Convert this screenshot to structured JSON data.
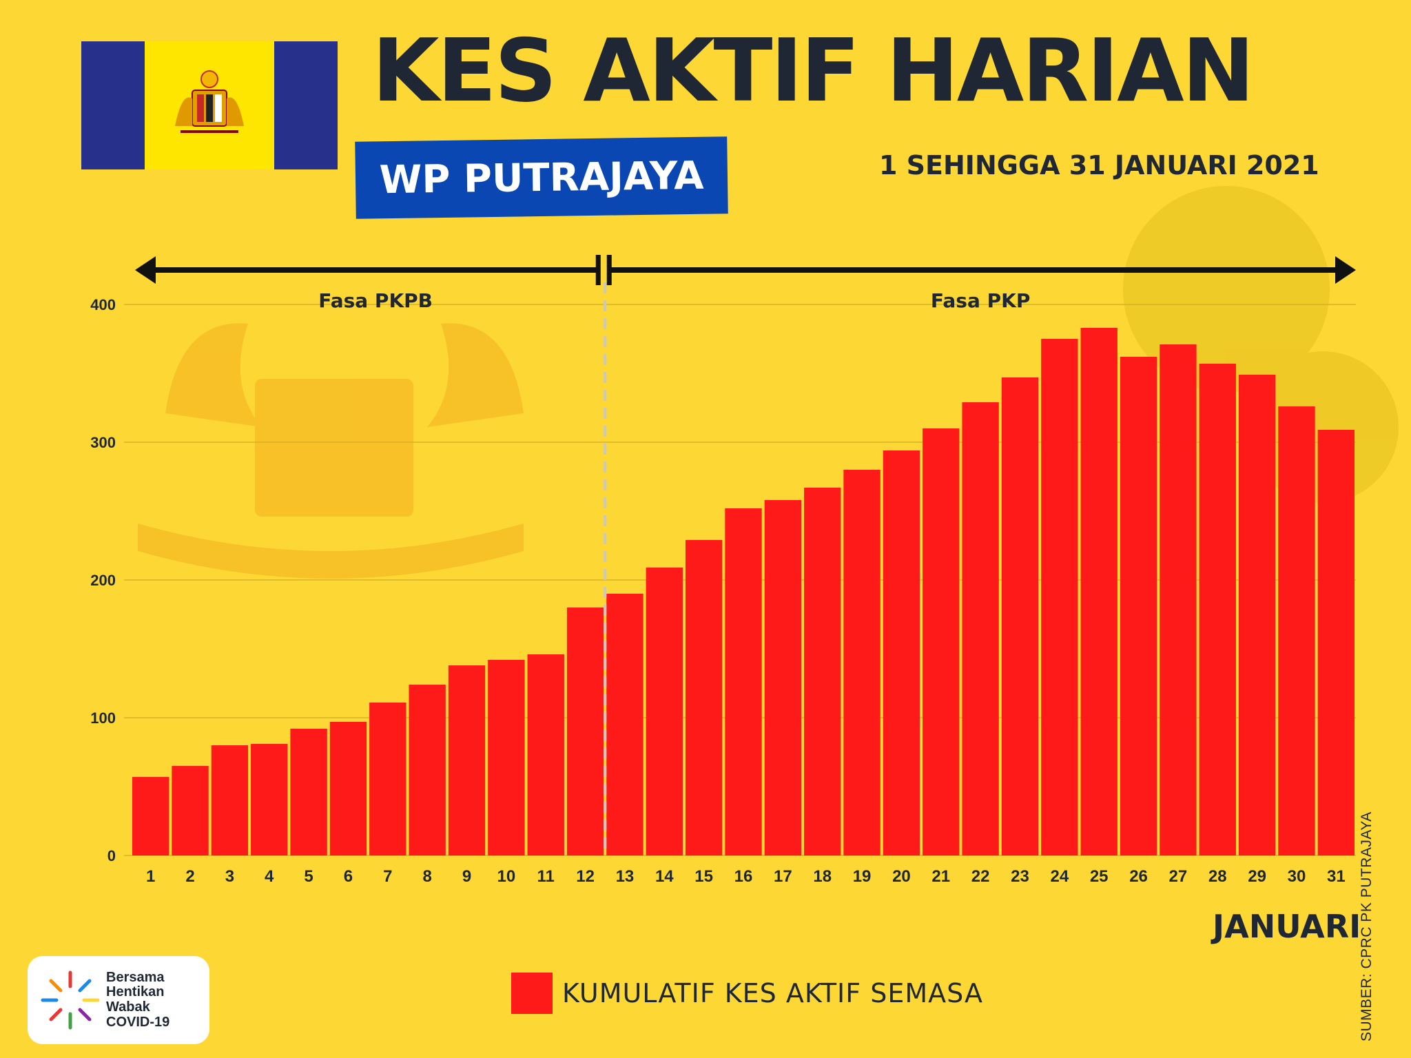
{
  "header": {
    "title": "KES AKTIF HARIAN",
    "region": "WP PUTRAJAYA",
    "date_range": "1 SEHINGGA 31 JANUARI 2021"
  },
  "colors": {
    "background": "#FDD835",
    "bar": "#FF1A1A",
    "text": "#1E2733",
    "badge": "#0A47B3",
    "flag_blue": "#27318C"
  },
  "chart_data": {
    "type": "bar",
    "title": "KES AKTIF HARIAN",
    "xlabel": "JANUARI",
    "ylabel": "",
    "ylim": [
      0,
      400
    ],
    "yticks": [
      0,
      100,
      200,
      300,
      400
    ],
    "grid": true,
    "legend": "bottom-center",
    "categories": [
      "1",
      "2",
      "3",
      "4",
      "5",
      "6",
      "7",
      "8",
      "9",
      "10",
      "11",
      "12",
      "13",
      "14",
      "15",
      "16",
      "17",
      "18",
      "19",
      "20",
      "21",
      "22",
      "23",
      "24",
      "25",
      "26",
      "27",
      "28",
      "29",
      "30",
      "31"
    ],
    "series": [
      {
        "name": "KUMULATIF KES AKTIF SEMASA",
        "values": [
          57,
          65,
          80,
          81,
          92,
          97,
          111,
          124,
          138,
          142,
          146,
          180,
          190,
          209,
          229,
          252,
          258,
          267,
          280,
          294,
          310,
          329,
          347,
          375,
          383,
          362,
          371,
          357,
          349,
          326,
          309
        ]
      }
    ],
    "phases": [
      {
        "label": "Fasa PKPB",
        "days": [
          1,
          12
        ]
      },
      {
        "label": "Fasa PKP",
        "days": [
          13,
          31
        ]
      }
    ]
  },
  "footer": {
    "source": "SUMBER: CPRC PK PUTRAJAYA",
    "logo_lines": [
      "Bersama",
      "Hentikan",
      "Wabak",
      "COVID-19"
    ]
  }
}
